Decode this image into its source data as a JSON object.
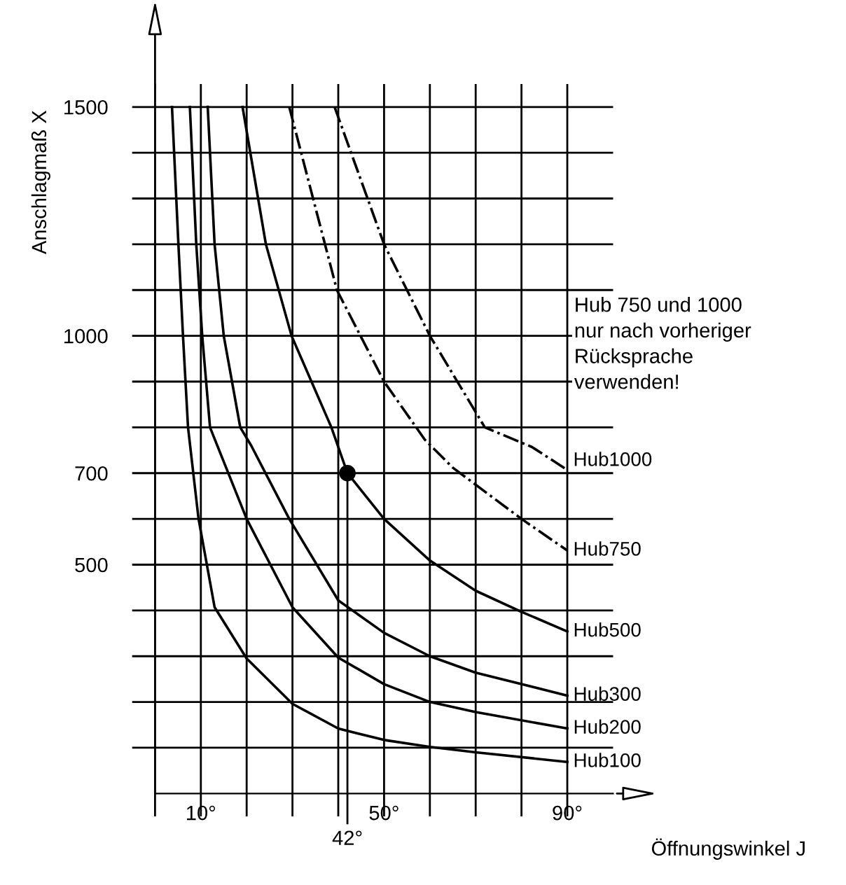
{
  "chart_data": {
    "type": "line",
    "xlabel": "Öffnungswinkel J",
    "ylabel": "Anschlagmaß X",
    "xlim": [
      -5,
      100
    ],
    "ylim": [
      -50,
      1550
    ],
    "xticks": [
      {
        "value": 0,
        "label": null
      },
      {
        "value": 10,
        "label": "10°"
      },
      {
        "value": 20,
        "label": null
      },
      {
        "value": 30,
        "label": null
      },
      {
        "value": 40,
        "label": null
      },
      {
        "value": 50,
        "label": "50°"
      },
      {
        "value": 60,
        "label": null
      },
      {
        "value": 70,
        "label": null
      },
      {
        "value": 80,
        "label": null
      },
      {
        "value": 90,
        "label": "90°"
      }
    ],
    "yticks": [
      {
        "value": 100,
        "label": null
      },
      {
        "value": 200,
        "label": null
      },
      {
        "value": 300,
        "label": null
      },
      {
        "value": 400,
        "label": null
      },
      500,
      {
        "value": 600,
        "label": null
      },
      700,
      {
        "value": 800,
        "label": null
      },
      {
        "value": 900,
        "label": null
      },
      1000,
      {
        "value": 1100,
        "label": null
      },
      {
        "value": 1200,
        "label": null
      },
      {
        "value": 1300,
        "label": null
      },
      {
        "value": 1400,
        "label": null
      },
      1500
    ],
    "grid": true,
    "legend": false,
    "series": [
      {
        "name": "Hub100",
        "color": "#000000",
        "line_style": "solid",
        "x": [
          3.7,
          5.1,
          6.1,
          7.2,
          9.5,
          13,
          20,
          30,
          40,
          50,
          60,
          70,
          90
        ],
        "values": [
          1500,
          1200,
          1000,
          800,
          600,
          407,
          295,
          196,
          142,
          117,
          102,
          90,
          69
        ]
      },
      {
        "name": "Hub200",
        "color": "#000000",
        "line_style": "solid",
        "x": [
          7.6,
          9,
          10.3,
          12,
          14,
          20,
          30,
          40,
          50,
          60,
          70,
          90
        ],
        "values": [
          1500,
          1200,
          1000,
          800,
          750,
          600,
          407,
          297,
          239,
          200,
          178,
          142
        ]
      },
      {
        "name": "Hub300",
        "color": "#000000",
        "line_style": "solid",
        "x": [
          11.5,
          13,
          15,
          18.6,
          21,
          29.3,
          40,
          50,
          60,
          70,
          90
        ],
        "values": [
          1500,
          1200,
          1000,
          800,
          760,
          600,
          422,
          351,
          300,
          264,
          214
        ]
      },
      {
        "name": "Hub500",
        "color": "#000000",
        "line_style": "solid",
        "x": [
          19.1,
          24.2,
          29.8,
          38.5,
          42,
          50,
          60,
          70,
          80,
          90
        ],
        "values": [
          1500,
          1200,
          1000,
          800,
          700,
          600,
          509,
          443,
          397,
          354
        ]
      },
      {
        "name": "Hub750",
        "color": "#000000",
        "line_style": "dashdot",
        "x": [
          29.3,
          39.7,
          50,
          58.9,
          65,
          80,
          90
        ],
        "values": [
          1500,
          1100,
          900,
          773,
          712,
          600,
          531
        ]
      },
      {
        "name": "Hub1000",
        "color": "#000000",
        "line_style": "dashdot",
        "x": [
          39.2,
          50,
          60,
          72,
          82.3,
          90
        ],
        "values": [
          1500,
          1200,
          1000,
          800,
          757,
          707
        ]
      },
      {
        "type": "scatter",
        "color": "#000000",
        "marker": "circle",
        "x": [
          42
        ],
        "values": [
          700
        ]
      }
    ],
    "annotations": [
      {
        "text": "42°",
        "x": 42,
        "y": 700
      },
      "Hub 750 und 1000\nnur nach vorheriger\nRücksprache\nverwenden!"
    ]
  }
}
